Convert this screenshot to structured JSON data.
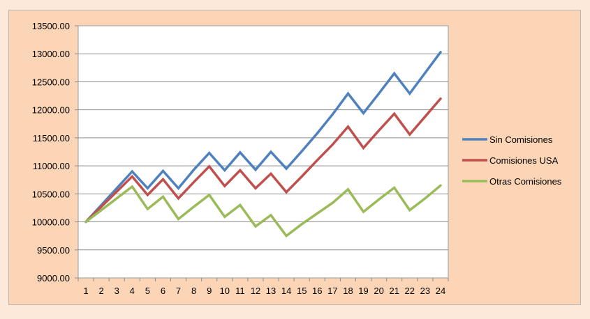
{
  "chart_data": {
    "type": "line",
    "x": [
      1,
      2,
      3,
      4,
      5,
      6,
      7,
      8,
      9,
      10,
      11,
      12,
      13,
      14,
      15,
      16,
      17,
      18,
      19,
      20,
      21,
      22,
      23,
      24
    ],
    "ylim": [
      9000,
      13500
    ],
    "yticks": [
      "9000.00",
      "9500.00",
      "10000.00",
      "10500.00",
      "11000.00",
      "11500.00",
      "12000.00",
      "12500.00",
      "13000.00",
      "13500.00"
    ],
    "ytick_values": [
      9000,
      9500,
      10000,
      10500,
      11000,
      11500,
      12000,
      12500,
      13000,
      13500
    ],
    "grid": true,
    "legend_position": "right",
    "series": [
      {
        "name": "Sin Comisiones",
        "color": "#4f81bd",
        "values": [
          10000,
          10300,
          10600,
          10900,
          10600,
          10910,
          10600,
          10930,
          11230,
          10920,
          11240,
          10930,
          11250,
          10950,
          11260,
          11580,
          11920,
          12290,
          11940,
          12290,
          12650,
          12290,
          12660,
          13030
        ]
      },
      {
        "name": "Comisiones USA",
        "color": "#c0504d",
        "values": [
          10000,
          10270,
          10540,
          10810,
          10480,
          10760,
          10420,
          10710,
          10990,
          10640,
          10920,
          10600,
          10860,
          10530,
          10810,
          11100,
          11380,
          11700,
          11320,
          11630,
          11930,
          11560,
          11880,
          12200
        ]
      },
      {
        "name": "Otras Comisiones",
        "color": "#9bbb59",
        "values": [
          10000,
          10210,
          10420,
          10630,
          10230,
          10450,
          10050,
          10270,
          10480,
          10090,
          10300,
          9920,
          10120,
          9750,
          9960,
          10150,
          10340,
          10580,
          10180,
          10400,
          10610,
          10210,
          10420,
          10650
        ]
      }
    ]
  }
}
